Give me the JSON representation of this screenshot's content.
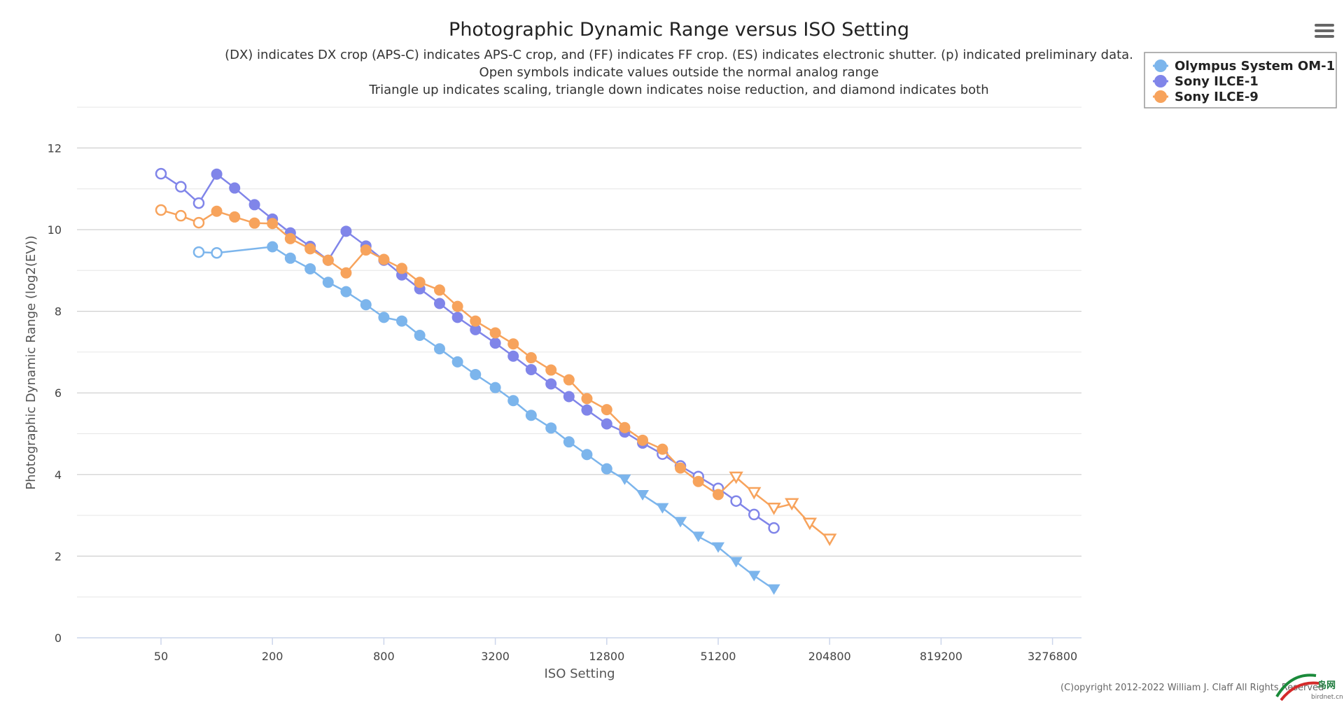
{
  "chart_data": {
    "type": "line",
    "title": "Photographic Dynamic Range versus ISO Setting",
    "subtitle": [
      "(DX) indicates DX crop (APS-C) indicates APS-C crop, and (FF) indicates FF crop. (ES) indicates electronic shutter. (p) indicated preliminary data.",
      "Open symbols indicate values outside the normal analog range",
      "Triangle up indicates scaling, triangle down indicates noise reduction, and diamond indicates both"
    ],
    "xlabel": "ISO Setting",
    "ylabel": "Photographic Dynamic Range (log2(EV))",
    "x_scale": "log2",
    "x_ticks": [
      50,
      200,
      800,
      3200,
      12800,
      51200,
      204800,
      819200,
      3276800
    ],
    "x_tick_labels": [
      "50",
      "200",
      "800",
      "3200",
      "12800",
      "51200",
      "204800",
      "819200",
      "3276800"
    ],
    "y_ticks": [
      0,
      2,
      4,
      6,
      8,
      10,
      12
    ],
    "ylim": [
      0,
      13
    ],
    "legend_position": "top-right",
    "credits": "(C)opyright 2012-2022 William J. Claff All Rights Reserved",
    "series": [
      {
        "name": "Olympus System OM-1",
        "color": "#7cb5ec",
        "points": [
          {
            "iso": 80,
            "dr": 9.45,
            "m": "open"
          },
          {
            "iso": 100,
            "dr": 9.43,
            "m": "open"
          },
          {
            "iso": 200,
            "dr": 9.58,
            "m": "filled"
          },
          {
            "iso": 250,
            "dr": 9.3,
            "m": "filled"
          },
          {
            "iso": 320,
            "dr": 9.04,
            "m": "filled"
          },
          {
            "iso": 400,
            "dr": 8.71,
            "m": "filled"
          },
          {
            "iso": 500,
            "dr": 8.48,
            "m": "filled"
          },
          {
            "iso": 640,
            "dr": 8.16,
            "m": "filled"
          },
          {
            "iso": 800,
            "dr": 7.85,
            "m": "filled"
          },
          {
            "iso": 1000,
            "dr": 7.76,
            "m": "filled"
          },
          {
            "iso": 1250,
            "dr": 7.41,
            "m": "filled"
          },
          {
            "iso": 1600,
            "dr": 7.08,
            "m": "filled"
          },
          {
            "iso": 2000,
            "dr": 6.76,
            "m": "filled"
          },
          {
            "iso": 2500,
            "dr": 6.45,
            "m": "filled"
          },
          {
            "iso": 3200,
            "dr": 6.13,
            "m": "filled"
          },
          {
            "iso": 4000,
            "dr": 5.81,
            "m": "filled"
          },
          {
            "iso": 5000,
            "dr": 5.45,
            "m": "filled"
          },
          {
            "iso": 6400,
            "dr": 5.14,
            "m": "filled"
          },
          {
            "iso": 8000,
            "dr": 4.8,
            "m": "filled"
          },
          {
            "iso": 10000,
            "dr": 4.49,
            "m": "filled"
          },
          {
            "iso": 12800,
            "dr": 4.14,
            "m": "filled"
          },
          {
            "iso": 16000,
            "dr": 3.88,
            "m": "tri-down"
          },
          {
            "iso": 20000,
            "dr": 3.5,
            "m": "tri-down"
          },
          {
            "iso": 25600,
            "dr": 3.18,
            "m": "tri-down"
          },
          {
            "iso": 32000,
            "dr": 2.84,
            "m": "tri-down"
          },
          {
            "iso": 40000,
            "dr": 2.48,
            "m": "tri-down"
          },
          {
            "iso": 51200,
            "dr": 2.22,
            "m": "tri-down"
          },
          {
            "iso": 64000,
            "dr": 1.86,
            "m": "tri-down"
          },
          {
            "iso": 80000,
            "dr": 1.52,
            "m": "tri-down"
          },
          {
            "iso": 102400,
            "dr": 1.19,
            "m": "tri-down"
          }
        ]
      },
      {
        "name": "Sony ILCE-1",
        "color": "#8085e9",
        "points": [
          {
            "iso": 50,
            "dr": 11.37,
            "m": "open"
          },
          {
            "iso": 64,
            "dr": 11.05,
            "m": "open"
          },
          {
            "iso": 80,
            "dr": 10.65,
            "m": "open"
          },
          {
            "iso": 100,
            "dr": 11.36,
            "m": "filled"
          },
          {
            "iso": 125,
            "dr": 11.02,
            "m": "filled"
          },
          {
            "iso": 160,
            "dr": 10.61,
            "m": "filled"
          },
          {
            "iso": 200,
            "dr": 10.26,
            "m": "filled"
          },
          {
            "iso": 250,
            "dr": 9.92,
            "m": "filled"
          },
          {
            "iso": 320,
            "dr": 9.59,
            "m": "filled"
          },
          {
            "iso": 400,
            "dr": 9.25,
            "m": "filled"
          },
          {
            "iso": 500,
            "dr": 9.96,
            "m": "filled"
          },
          {
            "iso": 640,
            "dr": 9.6,
            "m": "filled"
          },
          {
            "iso": 800,
            "dr": 9.25,
            "m": "filled"
          },
          {
            "iso": 1000,
            "dr": 8.89,
            "m": "filled"
          },
          {
            "iso": 1250,
            "dr": 8.55,
            "m": "filled"
          },
          {
            "iso": 1600,
            "dr": 8.19,
            "m": "filled"
          },
          {
            "iso": 2000,
            "dr": 7.85,
            "m": "filled"
          },
          {
            "iso": 2500,
            "dr": 7.55,
            "m": "filled"
          },
          {
            "iso": 3200,
            "dr": 7.22,
            "m": "filled"
          },
          {
            "iso": 4000,
            "dr": 6.9,
            "m": "filled"
          },
          {
            "iso": 5000,
            "dr": 6.57,
            "m": "filled"
          },
          {
            "iso": 6400,
            "dr": 6.22,
            "m": "filled"
          },
          {
            "iso": 8000,
            "dr": 5.91,
            "m": "filled"
          },
          {
            "iso": 10000,
            "dr": 5.58,
            "m": "filled"
          },
          {
            "iso": 12800,
            "dr": 5.24,
            "m": "filled"
          },
          {
            "iso": 16000,
            "dr": 5.04,
            "m": "filled"
          },
          {
            "iso": 20000,
            "dr": 4.77,
            "m": "filled"
          },
          {
            "iso": 25600,
            "dr": 4.5,
            "m": "open"
          },
          {
            "iso": 32000,
            "dr": 4.21,
            "m": "open"
          },
          {
            "iso": 40000,
            "dr": 3.95,
            "m": "open"
          },
          {
            "iso": 51200,
            "dr": 3.66,
            "m": "open"
          },
          {
            "iso": 64000,
            "dr": 3.35,
            "m": "open"
          },
          {
            "iso": 80000,
            "dr": 3.02,
            "m": "open"
          },
          {
            "iso": 102400,
            "dr": 2.69,
            "m": "open"
          }
        ]
      },
      {
        "name": "Sony ILCE-9",
        "color": "#f7a35c",
        "points": [
          {
            "iso": 50,
            "dr": 10.48,
            "m": "open"
          },
          {
            "iso": 64,
            "dr": 10.34,
            "m": "open"
          },
          {
            "iso": 80,
            "dr": 10.17,
            "m": "open"
          },
          {
            "iso": 100,
            "dr": 10.45,
            "m": "filled"
          },
          {
            "iso": 125,
            "dr": 10.31,
            "m": "filled"
          },
          {
            "iso": 160,
            "dr": 10.16,
            "m": "filled"
          },
          {
            "iso": 200,
            "dr": 10.15,
            "m": "filled"
          },
          {
            "iso": 250,
            "dr": 9.78,
            "m": "filled"
          },
          {
            "iso": 320,
            "dr": 9.53,
            "m": "filled"
          },
          {
            "iso": 400,
            "dr": 9.25,
            "m": "filled"
          },
          {
            "iso": 500,
            "dr": 8.94,
            "m": "filled"
          },
          {
            "iso": 640,
            "dr": 9.5,
            "m": "filled"
          },
          {
            "iso": 800,
            "dr": 9.27,
            "m": "filled"
          },
          {
            "iso": 1000,
            "dr": 9.05,
            "m": "filled"
          },
          {
            "iso": 1250,
            "dr": 8.71,
            "m": "filled"
          },
          {
            "iso": 1600,
            "dr": 8.52,
            "m": "filled"
          },
          {
            "iso": 2000,
            "dr": 8.12,
            "m": "filled"
          },
          {
            "iso": 2500,
            "dr": 7.76,
            "m": "filled"
          },
          {
            "iso": 3200,
            "dr": 7.47,
            "m": "filled"
          },
          {
            "iso": 4000,
            "dr": 7.2,
            "m": "filled"
          },
          {
            "iso": 5000,
            "dr": 6.86,
            "m": "filled"
          },
          {
            "iso": 6400,
            "dr": 6.56,
            "m": "filled"
          },
          {
            "iso": 8000,
            "dr": 6.32,
            "m": "filled"
          },
          {
            "iso": 10000,
            "dr": 5.86,
            "m": "filled"
          },
          {
            "iso": 12800,
            "dr": 5.59,
            "m": "filled"
          },
          {
            "iso": 16000,
            "dr": 5.15,
            "m": "filled"
          },
          {
            "iso": 20000,
            "dr": 4.84,
            "m": "filled"
          },
          {
            "iso": 25600,
            "dr": 4.62,
            "m": "filled"
          },
          {
            "iso": 32000,
            "dr": 4.16,
            "m": "filled"
          },
          {
            "iso": 40000,
            "dr": 3.83,
            "m": "filled"
          },
          {
            "iso": 51200,
            "dr": 3.51,
            "m": "filled"
          },
          {
            "iso": 64000,
            "dr": 3.93,
            "m": "open-tri-down"
          },
          {
            "iso": 80000,
            "dr": 3.55,
            "m": "open-tri-down"
          },
          {
            "iso": 102400,
            "dr": 3.17,
            "m": "open-tri-down"
          },
          {
            "iso": 128000,
            "dr": 3.28,
            "m": "open-tri-down"
          },
          {
            "iso": 160000,
            "dr": 2.8,
            "m": "open-tri-down"
          },
          {
            "iso": 204800,
            "dr": 2.41,
            "m": "open-tri-down"
          }
        ]
      }
    ]
  },
  "menu": {
    "icon": "hamburger-menu-icon"
  },
  "watermark": {
    "text": "鸟网",
    "sub": "birdnet.cn"
  }
}
